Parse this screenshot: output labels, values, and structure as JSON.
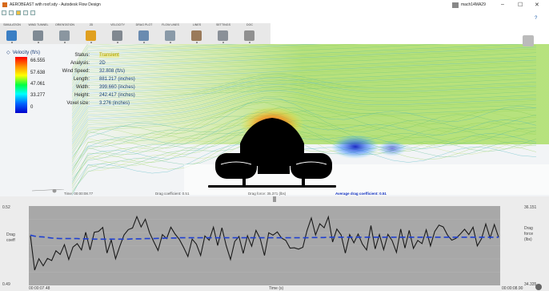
{
  "window": {
    "title": "AEROBEAST with roof.sdy - Autodesk Flow Design",
    "user": "mach14MA29",
    "minimize": "–",
    "maximize": "☐",
    "close": "✕",
    "help": "?"
  },
  "ribbon": {
    "tabs": [
      {
        "label": "SIMULATION",
        "icon": "simulation-icon",
        "color": "#3b7fc4"
      },
      {
        "label": "WIND TUNNEL",
        "icon": "wind-tunnel-icon",
        "color": "#7f8a94"
      },
      {
        "label": "ORIENTATION",
        "icon": "orientation-icon",
        "color": "#8a96a0"
      },
      {
        "label": "2D",
        "icon": "2d-icon",
        "color": "#e0a020"
      },
      {
        "label": "VELOCITY",
        "icon": "velocity-icon",
        "color": "#808890"
      },
      {
        "label": "DRAG PLOT",
        "icon": "drag-plot-icon",
        "color": "#6a8bb0"
      },
      {
        "label": "FLOW LINES",
        "icon": "flow-lines-icon",
        "color": "#8a9aa8"
      },
      {
        "label": "LINES",
        "icon": "lines-icon",
        "color": "#9a7a5a"
      },
      {
        "label": "SETTINGS",
        "icon": "settings-icon",
        "color": "#8a9098"
      },
      {
        "label": "DOC",
        "icon": "doc-icon",
        "color": "#909090"
      }
    ]
  },
  "legend": {
    "title": "Velocity (ft/s)",
    "values": [
      "66.555",
      "57.638",
      "47.061",
      "33.277",
      "0"
    ]
  },
  "info": [
    {
      "key": "Status:",
      "value": "Transient",
      "highlight": "#f0e000"
    },
    {
      "key": "Analysis:",
      "value": "2D"
    },
    {
      "key": "Wind Speed:",
      "value": "32.808 (ft/s)"
    },
    {
      "key": "Length:",
      "value": "881.217 (inches)"
    },
    {
      "key": "Width:",
      "value": "399.660 (inches)"
    },
    {
      "key": "Height:",
      "value": "242.417 (inches)"
    },
    {
      "key": "Voxel size:",
      "value": "3.276 (inches)"
    }
  ],
  "timeline": {
    "time": "Time: 00:00:08.77",
    "drag_coefficient": "Drag coefficient: 0.51",
    "drag_force": "Drag force: 35.371 (lbs)",
    "avg_drag": "Average drag coefficient: 0.51"
  },
  "plot": {
    "y_max": "0.52",
    "y_min": "0.49",
    "left_label_1": "Drag",
    "left_label_2": "coeff",
    "right_max": "36.151",
    "right_min": "34.335",
    "right_label_1": "Drag",
    "right_label_2": "force",
    "right_label_3": "(lbs)",
    "x_start": "00:00:07.48",
    "x_end": "00:00:08.90",
    "x_label": "Time (s)",
    "series_color": "#1a1a1a",
    "avg_color": "#2040d0",
    "values": [
      0.5088,
      0.4958,
      0.5001,
      0.4974,
      0.5002,
      0.4994,
      0.5031,
      0.5017,
      0.5054,
      0.4998,
      0.5045,
      0.5058,
      0.5034,
      0.5101,
      0.5034,
      0.5101,
      0.5104,
      0.5119,
      0.5022,
      0.5072,
      0.5001,
      0.5048,
      0.5091,
      0.5111,
      0.5117,
      0.516,
      0.5121,
      0.515,
      0.5099,
      0.5065,
      0.5032,
      0.5092,
      0.5077,
      0.512,
      0.5094,
      0.5074,
      0.5043,
      0.5009,
      0.5075,
      0.5056,
      0.5013,
      0.5087,
      0.5071,
      0.512,
      0.5051,
      0.5118,
      0.5051,
      0.4998,
      0.5066,
      0.5085,
      0.5021,
      0.5088,
      0.5048,
      0.5108,
      0.5076,
      0.5013,
      0.5099,
      0.509,
      0.5102,
      0.5079,
      0.507,
      0.5041,
      0.5042,
      0.5037,
      0.5044,
      0.5108,
      0.5155,
      0.5091,
      0.5133,
      0.5118,
      0.5159,
      0.5064,
      0.5113,
      0.5091,
      0.5022,
      0.5092,
      0.5061,
      0.5094,
      0.5056,
      0.5034,
      0.5126,
      0.5038,
      0.5092,
      0.5035,
      0.5093,
      0.5069,
      0.5025,
      0.5113,
      0.5041,
      0.5108,
      0.504,
      0.507,
      0.5058,
      0.511,
      0.5049,
      0.5104,
      0.5128,
      0.5121,
      0.509,
      0.5071,
      0.5078,
      0.5094,
      0.5112,
      0.5092,
      0.512,
      0.5049,
      0.5077,
      0.5132,
      0.5079,
      0.513,
      0.5082
    ],
    "average": [
      0.509,
      0.5086,
      0.5084,
      0.5083,
      0.5081,
      0.5079,
      0.5078,
      0.5077,
      0.5077,
      0.5077,
      0.5077,
      0.5077,
      0.5076,
      0.5076,
      0.5076,
      0.5075,
      0.5075,
      0.5075,
      0.5075,
      0.5075,
      0.5075,
      0.5075,
      0.5075,
      0.5075,
      0.5076,
      0.5076,
      0.5076,
      0.5077,
      0.5077,
      0.5077,
      0.5078,
      0.5078,
      0.5079,
      0.5079,
      0.5079,
      0.508,
      0.508,
      0.508,
      0.508,
      0.508,
      0.508,
      0.508,
      0.508,
      0.508,
      0.508,
      0.508,
      0.508,
      0.508,
      0.508,
      0.508,
      0.508,
      0.508,
      0.508,
      0.508,
      0.508,
      0.508,
      0.508,
      0.508,
      0.508,
      0.508,
      0.508,
      0.508,
      0.508,
      0.508,
      0.508,
      0.508,
      0.5081,
      0.5081,
      0.5081,
      0.5081,
      0.5082,
      0.5082,
      0.5082,
      0.5082,
      0.5082,
      0.5082,
      0.5082,
      0.5082,
      0.5082,
      0.5082,
      0.5082,
      0.5082,
      0.5082,
      0.5082,
      0.5082,
      0.5082,
      0.5082,
      0.5082,
      0.5082,
      0.5082,
      0.5082,
      0.5082,
      0.5082,
      0.5082,
      0.5082,
      0.5082,
      0.5082,
      0.5082,
      0.5082,
      0.5082,
      0.5082,
      0.5082,
      0.5082,
      0.5082,
      0.5082,
      0.5082,
      0.5082,
      0.5082,
      0.5082,
      0.5082,
      0.5082
    ],
    "ylim": [
      0.49,
      0.52
    ]
  }
}
